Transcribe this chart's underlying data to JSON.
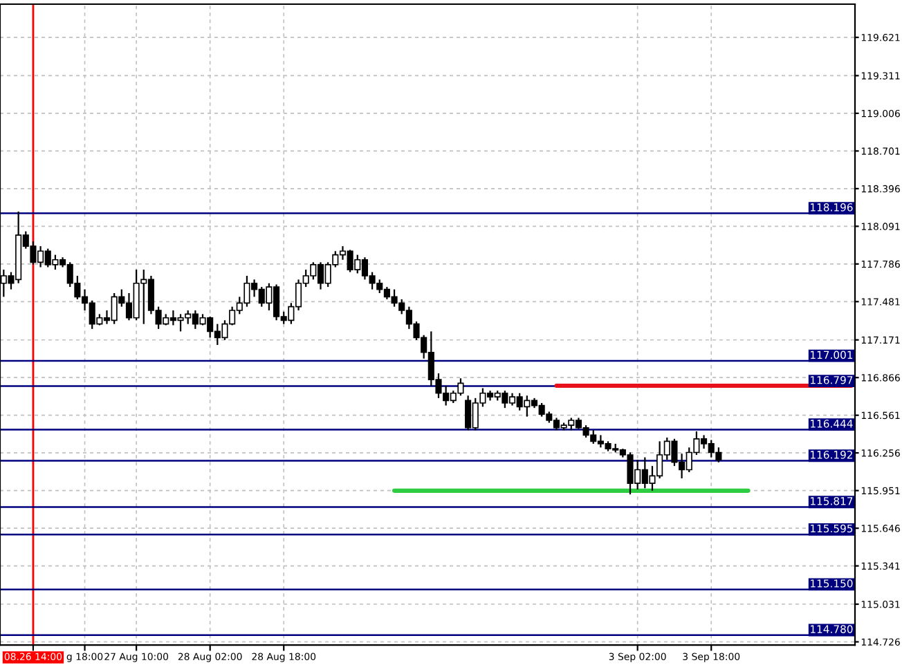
{
  "chart_data": {
    "type": "candlestick",
    "color": "#000000",
    "categories": [
      null,
      null,
      null,
      null,
      "08.26 14:00",
      null,
      null,
      null,
      null,
      null,
      null,
      "g 18:00",
      null,
      null,
      null,
      null,
      null,
      null,
      "27 Aug 10:00",
      null,
      null,
      null,
      null,
      null,
      null,
      null,
      null,
      null,
      "28 Aug 02:00",
      null,
      null,
      null,
      null,
      null,
      null,
      null,
      null,
      null,
      "28 Aug 18:00",
      null,
      null,
      null,
      null,
      null,
      null,
      null,
      null,
      null,
      null,
      null,
      null,
      null,
      null,
      null,
      null,
      null,
      null,
      null,
      null,
      null,
      null,
      null,
      null,
      null,
      null,
      null,
      null,
      null,
      null,
      null,
      null,
      null,
      null,
      null,
      null,
      null,
      null,
      null,
      null,
      null,
      null,
      null,
      null,
      null,
      null,
      null,
      "3 Sep 02:00",
      null,
      null,
      null,
      null,
      null,
      null,
      null,
      null,
      null,
      "3 Sep 18:00",
      null,
      null,
      null,
      null,
      null,
      null,
      null,
      null,
      null,
      null,
      null,
      null,
      null,
      null,
      null,
      null,
      null,
      null,
      null
    ],
    "ohlc": [
      [
        117.63,
        117.74,
        117.52,
        117.69
      ],
      [
        117.69,
        117.72,
        117.58,
        117.63
      ],
      [
        117.66,
        118.21,
        117.63,
        118.02
      ],
      [
        118.02,
        118.05,
        117.91,
        117.93
      ],
      [
        117.93,
        117.97,
        117.78,
        117.8
      ],
      [
        117.8,
        117.93,
        117.76,
        117.89
      ],
      [
        117.89,
        117.91,
        117.76,
        117.78
      ],
      [
        117.78,
        117.86,
        117.74,
        117.82
      ],
      [
        117.82,
        117.84,
        117.76,
        117.78
      ],
      [
        117.78,
        117.8,
        117.6,
        117.63
      ],
      [
        117.63,
        117.69,
        117.5,
        117.52
      ],
      [
        117.52,
        117.58,
        117.41,
        117.47
      ],
      [
        117.47,
        117.49,
        117.26,
        117.3
      ],
      [
        117.3,
        117.38,
        117.29,
        117.35
      ],
      [
        117.35,
        117.41,
        117.3,
        117.33
      ],
      [
        117.33,
        117.55,
        117.3,
        117.52
      ],
      [
        117.52,
        117.58,
        117.44,
        117.47
      ],
      [
        117.47,
        117.55,
        117.33,
        117.35
      ],
      [
        117.35,
        117.74,
        117.33,
        117.63
      ],
      [
        117.63,
        117.74,
        117.3,
        117.66
      ],
      [
        117.66,
        117.69,
        117.38,
        117.41
      ],
      [
        117.41,
        117.44,
        117.26,
        117.3
      ],
      [
        117.3,
        117.38,
        117.29,
        117.35
      ],
      [
        117.35,
        117.41,
        117.29,
        117.33
      ],
      [
        117.33,
        117.38,
        117.24,
        117.35
      ],
      [
        117.35,
        117.41,
        117.3,
        117.38
      ],
      [
        117.38,
        117.41,
        117.26,
        117.3
      ],
      [
        117.3,
        117.38,
        117.29,
        117.35
      ],
      [
        117.35,
        117.36,
        117.19,
        117.24
      ],
      [
        117.24,
        117.3,
        117.13,
        117.19
      ],
      [
        117.19,
        117.33,
        117.17,
        117.3
      ],
      [
        117.3,
        117.44,
        117.29,
        117.41
      ],
      [
        117.41,
        117.52,
        117.38,
        117.47
      ],
      [
        117.47,
        117.69,
        117.44,
        117.63
      ],
      [
        117.63,
        117.66,
        117.52,
        117.58
      ],
      [
        117.58,
        117.6,
        117.44,
        117.47
      ],
      [
        117.47,
        117.63,
        117.41,
        117.6
      ],
      [
        117.6,
        117.62,
        117.33,
        117.36
      ],
      [
        117.36,
        117.4,
        117.3,
        117.33
      ],
      [
        117.33,
        117.47,
        117.3,
        117.44
      ],
      [
        117.44,
        117.66,
        117.41,
        117.63
      ],
      [
        117.63,
        117.74,
        117.6,
        117.69
      ],
      [
        117.69,
        117.8,
        117.66,
        117.78
      ],
      [
        117.78,
        117.8,
        117.58,
        117.63
      ],
      [
        117.63,
        117.8,
        117.6,
        117.78
      ],
      [
        117.78,
        117.89,
        117.76,
        117.86
      ],
      [
        117.86,
        117.93,
        117.82,
        117.89
      ],
      [
        117.89,
        117.9,
        117.72,
        117.74
      ],
      [
        117.74,
        117.86,
        117.71,
        117.82
      ],
      [
        117.82,
        117.84,
        117.66,
        117.69
      ],
      [
        117.69,
        117.72,
        117.58,
        117.63
      ],
      [
        117.63,
        117.66,
        117.55,
        117.58
      ],
      [
        117.58,
        117.6,
        117.5,
        117.52
      ],
      [
        117.52,
        117.58,
        117.44,
        117.47
      ],
      [
        117.47,
        117.5,
        117.38,
        117.41
      ],
      [
        117.41,
        117.44,
        117.26,
        117.3
      ],
      [
        117.3,
        117.32,
        117.17,
        117.19
      ],
      [
        117.19,
        117.21,
        117.02,
        117.07
      ],
      [
        117.07,
        117.24,
        116.8,
        116.85
      ],
      [
        116.85,
        116.9,
        116.7,
        116.74
      ],
      [
        116.74,
        116.8,
        116.64,
        116.68
      ],
      [
        116.68,
        116.76,
        116.66,
        116.74
      ],
      [
        116.74,
        116.86,
        116.72,
        116.82
      ],
      [
        116.68,
        116.72,
        116.44,
        116.46
      ],
      [
        116.46,
        116.7,
        116.44,
        116.66
      ],
      [
        116.66,
        116.78,
        116.63,
        116.74
      ],
      [
        116.74,
        116.76,
        116.68,
        116.71
      ],
      [
        116.71,
        116.76,
        116.68,
        116.74
      ],
      [
        116.74,
        116.76,
        116.62,
        116.66
      ],
      [
        116.66,
        116.74,
        116.64,
        116.71
      ],
      [
        116.71,
        116.74,
        116.6,
        116.63
      ],
      [
        116.63,
        116.72,
        116.55,
        116.68
      ],
      [
        116.68,
        116.7,
        116.62,
        116.64
      ],
      [
        116.64,
        116.66,
        116.55,
        116.57
      ],
      [
        116.57,
        116.59,
        116.5,
        116.52
      ],
      [
        116.52,
        116.54,
        116.44,
        116.46
      ],
      [
        116.46,
        116.5,
        116.44,
        116.48
      ],
      [
        116.48,
        116.54,
        116.44,
        116.52
      ],
      [
        116.52,
        116.54,
        116.45,
        116.46
      ],
      [
        116.46,
        116.48,
        116.38,
        116.4
      ],
      [
        116.4,
        116.44,
        116.33,
        116.35
      ],
      [
        116.35,
        116.4,
        116.3,
        116.33
      ],
      [
        116.33,
        116.35,
        116.27,
        116.29
      ],
      [
        116.29,
        116.33,
        116.26,
        116.28
      ],
      [
        116.28,
        116.29,
        116.22,
        116.24
      ],
      [
        116.24,
        116.26,
        115.92,
        116.01
      ],
      [
        116.01,
        116.2,
        115.96,
        116.12
      ],
      [
        116.12,
        116.22,
        115.97,
        116.01
      ],
      [
        116.01,
        116.15,
        115.95,
        116.07
      ],
      [
        116.07,
        116.35,
        116.05,
        116.24
      ],
      [
        116.24,
        116.38,
        116.2,
        116.35
      ],
      [
        116.35,
        116.37,
        116.15,
        116.18
      ],
      [
        116.18,
        116.25,
        116.05,
        116.12
      ],
      [
        116.12,
        116.3,
        116.1,
        116.26
      ],
      [
        116.26,
        116.43,
        116.24,
        116.37
      ],
      [
        116.37,
        116.4,
        116.29,
        116.33
      ],
      [
        116.33,
        116.36,
        116.22,
        116.26
      ],
      [
        116.26,
        116.3,
        116.18,
        116.2
      ],
      null,
      null,
      null,
      null,
      null,
      null,
      null,
      null,
      null,
      null,
      null,
      null,
      null,
      null,
      null,
      null,
      null,
      null
    ],
    "series": [
      {
        "type": "line",
        "color": "#e8101a",
        "values": [
          null,
          null,
          null,
          null,
          null,
          null,
          null,
          null,
          null,
          null,
          null,
          null,
          null,
          null,
          null,
          null,
          null,
          null,
          null,
          null,
          null,
          null,
          null,
          null,
          null,
          null,
          null,
          null,
          null,
          null,
          null,
          null,
          null,
          null,
          null,
          null,
          null,
          null,
          null,
          null,
          null,
          null,
          null,
          null,
          null,
          null,
          null,
          null,
          null,
          null,
          null,
          null,
          null,
          null,
          null,
          null,
          null,
          null,
          null,
          null,
          null,
          null,
          null,
          null,
          null,
          null,
          null,
          null,
          null,
          null,
          null,
          null,
          null,
          null,
          null,
          116.8,
          116.8,
          116.8,
          116.8,
          116.8,
          116.8,
          116.8,
          116.8,
          116.8,
          116.8,
          116.8,
          116.8,
          116.8,
          116.8,
          116.8,
          116.8,
          116.8,
          116.8,
          116.8,
          116.8,
          116.8,
          116.8,
          116.8,
          116.8,
          116.8,
          116.8,
          116.8,
          116.8,
          116.8,
          116.8,
          116.8,
          116.8,
          116.8,
          116.8,
          116.8,
          116.8,
          116.8,
          116.8,
          116.8,
          116.8,
          116.8
        ]
      },
      {
        "type": "line",
        "color": "#2ecc40",
        "values": [
          null,
          null,
          null,
          null,
          null,
          null,
          null,
          null,
          null,
          null,
          null,
          null,
          null,
          null,
          null,
          null,
          null,
          null,
          null,
          null,
          null,
          null,
          null,
          null,
          null,
          null,
          null,
          null,
          null,
          null,
          null,
          null,
          null,
          null,
          null,
          null,
          null,
          null,
          null,
          null,
          null,
          null,
          null,
          null,
          null,
          null,
          null,
          null,
          null,
          null,
          null,
          null,
          null,
          115.95,
          115.95,
          115.95,
          115.95,
          115.95,
          115.95,
          115.95,
          115.95,
          115.95,
          115.95,
          115.95,
          115.95,
          115.95,
          115.95,
          115.95,
          115.95,
          115.95,
          115.95,
          115.95,
          115.95,
          115.95,
          115.95,
          115.95,
          115.95,
          115.95,
          115.95,
          115.95,
          115.95,
          115.95,
          115.95,
          115.95,
          115.95,
          115.95,
          115.95,
          115.95,
          115.95,
          115.95,
          115.95,
          115.95,
          115.95,
          115.95,
          115.95,
          115.95,
          115.95,
          115.95,
          115.95,
          115.95,
          115.95,
          115.95,
          null,
          null,
          null,
          null,
          null,
          null,
          null,
          null,
          null,
          null,
          null,
          null,
          null,
          null
        ]
      }
    ],
    "ylim": [
      114.7,
      119.89
    ],
    "yticks": [
      {
        "value": 119.621,
        "label": "119.621"
      },
      {
        "value": 119.311,
        "label": "119.311"
      },
      {
        "value": 119.006,
        "label": "119.006"
      },
      {
        "value": 118.701,
        "label": "118.701"
      },
      {
        "value": 118.396,
        "label": "118.396"
      },
      {
        "value": 118.091,
        "label": "118.091"
      },
      {
        "value": 117.786,
        "label": "117.786"
      },
      {
        "value": 117.481,
        "label": "117.481"
      },
      {
        "value": 117.171,
        "label": "117.171"
      },
      {
        "value": 116.866,
        "label": "116.866"
      },
      {
        "value": 116.561,
        "label": "116.561"
      },
      {
        "value": 116.256,
        "label": "116.256"
      },
      {
        "value": 115.951,
        "label": "115.951"
      },
      {
        "value": 115.646,
        "label": "115.646"
      },
      {
        "value": 115.341,
        "label": "115.341"
      },
      {
        "value": 115.031,
        "label": "115.031"
      },
      {
        "value": 114.726,
        "label": "114.726"
      }
    ],
    "ref_lines": [
      {
        "axis": "x",
        "value": "08.26 14:00",
        "color": "#ff0000"
      },
      {
        "axis": "y",
        "value": 118.196,
        "label": "118.196",
        "color": "#00007f"
      },
      {
        "axis": "y",
        "value": 117.001,
        "label": "117.001",
        "color": "#00007f"
      },
      {
        "axis": "y",
        "value": 116.797,
        "label": "116.797",
        "color": "#00007f"
      },
      {
        "axis": "y",
        "value": 116.444,
        "label": "116.444",
        "color": "#00007f"
      },
      {
        "axis": "y",
        "value": 116.192,
        "label": "116.192",
        "color": "#00007f"
      },
      {
        "axis": "y",
        "value": 115.817,
        "label": "115.817",
        "color": "#00007f"
      },
      {
        "axis": "y",
        "value": 115.595,
        "label": "115.595",
        "color": "#00007f"
      },
      {
        "axis": "y",
        "value": 115.15,
        "label": "115.150",
        "color": "#00007f"
      },
      {
        "axis": "y",
        "value": 114.78,
        "label": "114.780",
        "color": "#00007f"
      }
    ],
    "grid": true,
    "legend": false
  }
}
